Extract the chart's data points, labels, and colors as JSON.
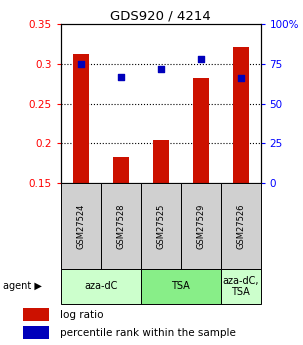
{
  "title": "GDS920 / 4214",
  "samples": [
    "GSM27524",
    "GSM27528",
    "GSM27525",
    "GSM27529",
    "GSM27526"
  ],
  "log_ratio": [
    0.313,
    0.182,
    0.204,
    0.282,
    0.321
  ],
  "percentile_rank": [
    75,
    67,
    72,
    78,
    66
  ],
  "bar_bottom": 0.15,
  "ylim_left": [
    0.15,
    0.35
  ],
  "ylim_right": [
    0,
    100
  ],
  "yticks_left": [
    0.15,
    0.2,
    0.25,
    0.3,
    0.35
  ],
  "yticks_right": [
    0,
    25,
    50,
    75,
    100
  ],
  "ytick_labels_right": [
    "0",
    "25",
    "50",
    "75",
    "100%"
  ],
  "bar_color": "#cc1100",
  "dot_color": "#0000bb",
  "agent_groups": [
    {
      "label": "aza-dC",
      "start": 0,
      "end": 2,
      "color": "#ccffcc"
    },
    {
      "label": "TSA",
      "start": 2,
      "end": 4,
      "color": "#88ee88"
    },
    {
      "label": "aza-dC,\nTSA",
      "start": 4,
      "end": 5,
      "color": "#ccffcc"
    }
  ],
  "legend_bar_color": "#cc1100",
  "legend_dot_color": "#0000bb",
  "legend_bar_label": "log ratio",
  "legend_dot_label": "percentile rank within the sample",
  "sample_box_color": "#d0d0d0",
  "agent_arrow": "▶",
  "agent_text": "agent"
}
